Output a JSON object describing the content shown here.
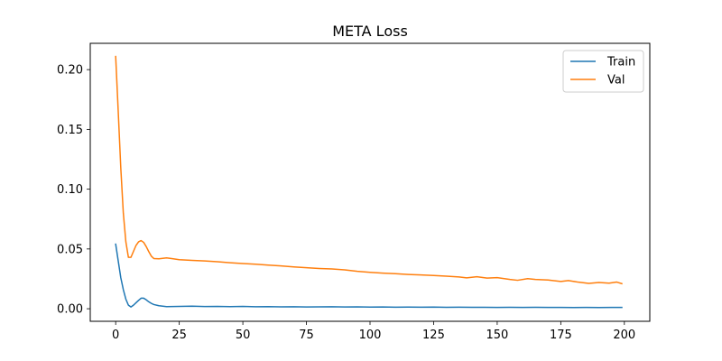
{
  "chart_data": {
    "type": "line",
    "title": "META Loss",
    "xlabel": "",
    "ylabel": "",
    "xlim": [
      -10,
      210
    ],
    "ylim": [
      -0.0105,
      0.222
    ],
    "xticks": [
      0,
      25,
      50,
      75,
      100,
      125,
      150,
      175,
      200
    ],
    "yticks": [
      0.0,
      0.05,
      0.1,
      0.15,
      0.2
    ],
    "ytick_labels": [
      "0.00",
      "0.05",
      "0.10",
      "0.15",
      "0.20"
    ],
    "grid": false,
    "legend_position": "top-right",
    "series": [
      {
        "name": "Train",
        "color": "#1f77b4",
        "points": [
          [
            0,
            0.054
          ],
          [
            1,
            0.04
          ],
          [
            2,
            0.026
          ],
          [
            3,
            0.016
          ],
          [
            4,
            0.008
          ],
          [
            5,
            0.003
          ],
          [
            6,
            0.0015
          ],
          [
            7,
            0.003
          ],
          [
            8,
            0.005
          ],
          [
            9,
            0.007
          ],
          [
            10,
            0.0088
          ],
          [
            11,
            0.0088
          ],
          [
            12,
            0.0075
          ],
          [
            13,
            0.0058
          ],
          [
            14,
            0.0045
          ],
          [
            15,
            0.0035
          ],
          [
            17,
            0.0025
          ],
          [
            20,
            0.0018
          ],
          [
            25,
            0.002
          ],
          [
            30,
            0.0021
          ],
          [
            35,
            0.0019
          ],
          [
            40,
            0.002
          ],
          [
            45,
            0.0018
          ],
          [
            50,
            0.002
          ],
          [
            55,
            0.0017
          ],
          [
            60,
            0.0018
          ],
          [
            65,
            0.0016
          ],
          [
            70,
            0.0017
          ],
          [
            75,
            0.0015
          ],
          [
            80,
            0.0016
          ],
          [
            85,
            0.0017
          ],
          [
            90,
            0.0015
          ],
          [
            95,
            0.0016
          ],
          [
            100,
            0.0014
          ],
          [
            105,
            0.0015
          ],
          [
            110,
            0.0013
          ],
          [
            115,
            0.0014
          ],
          [
            120,
            0.0013
          ],
          [
            125,
            0.0014
          ],
          [
            130,
            0.0012
          ],
          [
            135,
            0.0013
          ],
          [
            140,
            0.0012
          ],
          [
            145,
            0.0012
          ],
          [
            150,
            0.0011
          ],
          [
            155,
            0.0012
          ],
          [
            160,
            0.0011
          ],
          [
            165,
            0.0012
          ],
          [
            170,
            0.0011
          ],
          [
            175,
            0.0011
          ],
          [
            180,
            0.001
          ],
          [
            185,
            0.0011
          ],
          [
            190,
            0.001
          ],
          [
            195,
            0.0011
          ],
          [
            199,
            0.0011
          ]
        ]
      },
      {
        "name": "Val",
        "color": "#ff7f0e",
        "points": [
          [
            0,
            0.211
          ],
          [
            1,
            0.165
          ],
          [
            2,
            0.118
          ],
          [
            3,
            0.08
          ],
          [
            4,
            0.056
          ],
          [
            5,
            0.043
          ],
          [
            6,
            0.043
          ],
          [
            7,
            0.048
          ],
          [
            8,
            0.053
          ],
          [
            9,
            0.056
          ],
          [
            10,
            0.057
          ],
          [
            11,
            0.0555
          ],
          [
            12,
            0.052
          ],
          [
            13,
            0.0478
          ],
          [
            14,
            0.044
          ],
          [
            15,
            0.042
          ],
          [
            17,
            0.0418
          ],
          [
            20,
            0.0425
          ],
          [
            22,
            0.042
          ],
          [
            25,
            0.041
          ],
          [
            30,
            0.0405
          ],
          [
            35,
            0.04
          ],
          [
            40,
            0.0393
          ],
          [
            45,
            0.0385
          ],
          [
            50,
            0.0378
          ],
          [
            55,
            0.0372
          ],
          [
            60,
            0.0365
          ],
          [
            65,
            0.0358
          ],
          [
            70,
            0.035
          ],
          [
            75,
            0.0343
          ],
          [
            80,
            0.0337
          ],
          [
            85,
            0.0333
          ],
          [
            90,
            0.0325
          ],
          [
            95,
            0.0313
          ],
          [
            100,
            0.0305
          ],
          [
            105,
            0.0298
          ],
          [
            110,
            0.0293
          ],
          [
            115,
            0.0287
          ],
          [
            120,
            0.0283
          ],
          [
            125,
            0.0278
          ],
          [
            130,
            0.0272
          ],
          [
            135,
            0.0266
          ],
          [
            138,
            0.0258
          ],
          [
            142,
            0.0268
          ],
          [
            146,
            0.0256
          ],
          [
            150,
            0.026
          ],
          [
            155,
            0.0245
          ],
          [
            158,
            0.0238
          ],
          [
            162,
            0.0252
          ],
          [
            165,
            0.0245
          ],
          [
            170,
            0.024
          ],
          [
            175,
            0.0228
          ],
          [
            178,
            0.0236
          ],
          [
            182,
            0.0222
          ],
          [
            186,
            0.0212
          ],
          [
            190,
            0.022
          ],
          [
            194,
            0.0214
          ],
          [
            197,
            0.0223
          ],
          [
            199,
            0.021
          ]
        ]
      }
    ]
  }
}
